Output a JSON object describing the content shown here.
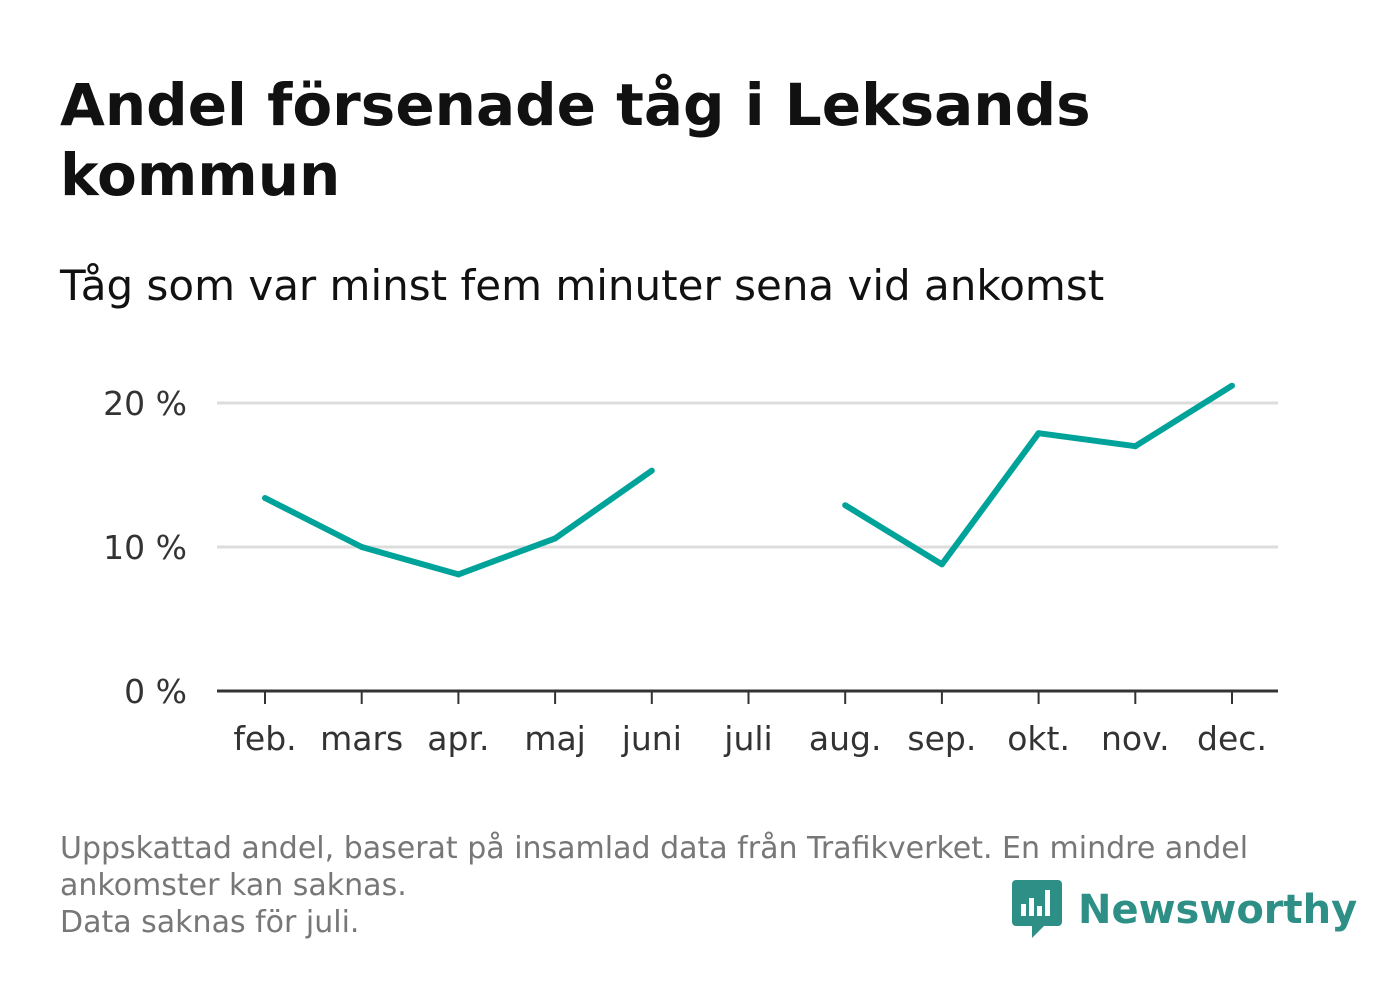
{
  "title": "Andel försenade tåg i Leksands kommun",
  "subtitle": "Tåg som var minst fem minuter sena vid ankomst",
  "footer": {
    "note_line1": "Uppskattad andel, baserat på insamlad data från Trafikverket. En mindre andel",
    "note_line2": "ankomster kan saknas.",
    "note_line3": "Data saknas för juli."
  },
  "logo": {
    "text": "Newsworthy",
    "icon": "newsworthy-bar-chart-icon"
  },
  "colors": {
    "line": "#00a39a",
    "grid": "#dddddd",
    "axis": "#333333",
    "logo": "#2e8f87"
  },
  "chart_data": {
    "type": "line",
    "categories": [
      "feb.",
      "mars",
      "apr.",
      "maj",
      "juni",
      "juli",
      "aug.",
      "sep.",
      "okt.",
      "nov.",
      "dec."
    ],
    "series": [
      {
        "values": [
          13.4,
          10.0,
          8.1,
          10.6,
          15.3,
          null,
          12.9,
          8.8,
          17.9,
          17.0,
          21.2
        ]
      }
    ],
    "yticks": [
      0,
      10,
      20
    ],
    "ytick_labels": [
      "0 %",
      "10 %",
      "20 %"
    ],
    "ylim": [
      0,
      20
    ],
    "grid": true
  }
}
